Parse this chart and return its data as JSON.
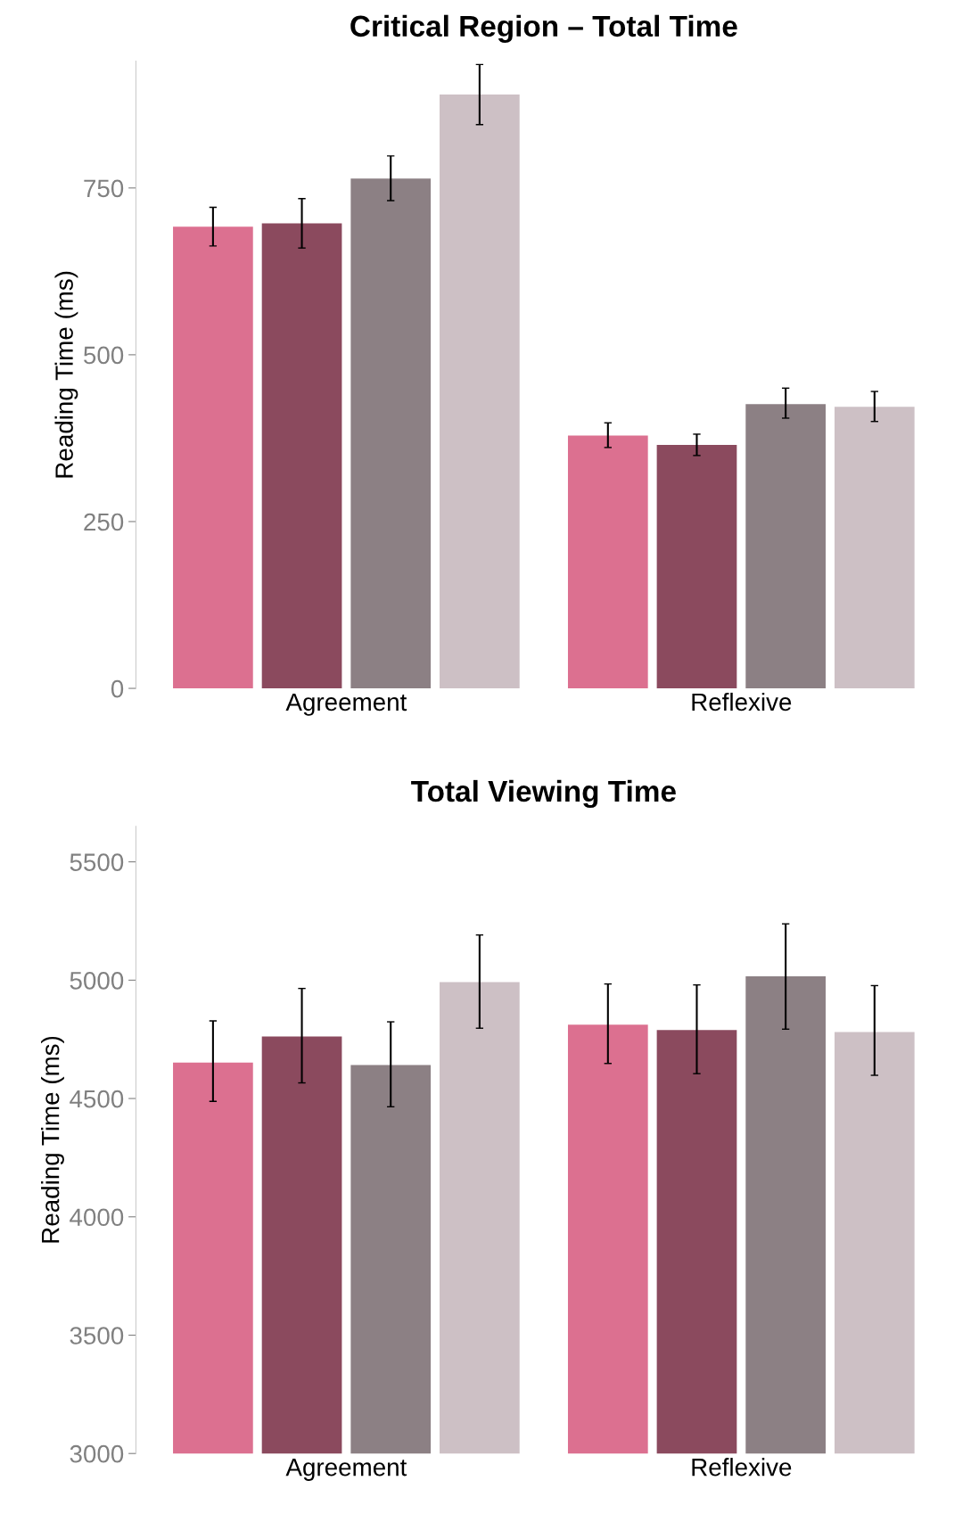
{
  "chart_data": [
    {
      "type": "bar",
      "title": "Critical Region – Total Time",
      "ylabel": "Reading Time (ms)",
      "categories": [
        "Agreement",
        "Reflexive"
      ],
      "ylim": [
        0,
        940
      ],
      "yticks": [
        0,
        250,
        500,
        750
      ],
      "grid": false,
      "legend": false,
      "series": [
        {
          "color": "#dc7090",
          "values": [
            692,
            379
          ],
          "errors": [
            [
              663,
              721
            ],
            [
              361,
              398
            ]
          ]
        },
        {
          "color": "#8b4a5e",
          "values": [
            697,
            365
          ],
          "errors": [
            [
              660,
              734
            ],
            [
              349,
              381
            ]
          ]
        },
        {
          "color": "#8c8084",
          "values": [
            764,
            426
          ],
          "errors": [
            [
              731,
              798
            ],
            [
              405,
              450
            ]
          ]
        },
        {
          "color": "#cdc0c5",
          "values": [
            890,
            422
          ],
          "errors": [
            [
              845,
              935
            ],
            [
              400,
              445
            ]
          ]
        }
      ]
    },
    {
      "type": "bar",
      "title": "Total Viewing Time",
      "ylabel": "Reading Time (ms)",
      "categories": [
        "Agreement",
        "Reflexive"
      ],
      "ylim": [
        3000,
        5650
      ],
      "yticks": [
        3000,
        3500,
        4000,
        4500,
        5000,
        5500
      ],
      "grid": false,
      "legend": false,
      "series": [
        {
          "color": "#dc7090",
          "values": [
            4652,
            4812
          ],
          "errors": [
            [
              4488,
              4828
            ],
            [
              4648,
              4984
            ]
          ]
        },
        {
          "color": "#8b4a5e",
          "values": [
            4762,
            4789
          ],
          "errors": [
            [
              4566,
              4965
            ],
            [
              4605,
              4980
            ]
          ]
        },
        {
          "color": "#8c8084",
          "values": [
            4641,
            5016
          ],
          "errors": [
            [
              4465,
              4824
            ],
            [
              4793,
              5238
            ]
          ]
        },
        {
          "color": "#cdc0c5",
          "values": [
            4992,
            4781
          ],
          "errors": [
            [
              4797,
              5191
            ],
            [
              4598,
              4977
            ]
          ]
        }
      ]
    }
  ]
}
